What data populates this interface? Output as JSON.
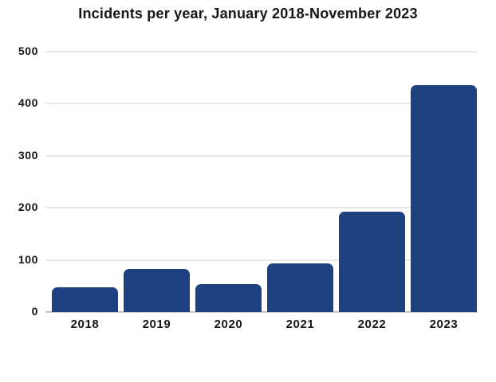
{
  "chart_data": {
    "type": "bar",
    "title": "Incidents per year, January 2018-November 2023",
    "categories": [
      "2018",
      "2019",
      "2020",
      "2021",
      "2022",
      "2023"
    ],
    "values": [
      48,
      82,
      53,
      94,
      193,
      436
    ],
    "xlabel": "",
    "ylabel": "",
    "ylim": [
      0,
      500
    ],
    "yticks": [
      0,
      100,
      200,
      300,
      400,
      500
    ],
    "grid": "horizontal-only",
    "legend": "none",
    "colors": {
      "bar": "#1e4181",
      "gridline": "#e7e7e7",
      "baseline": "#c6c6c6",
      "text": "#161616",
      "background": "#ffffff"
    }
  }
}
